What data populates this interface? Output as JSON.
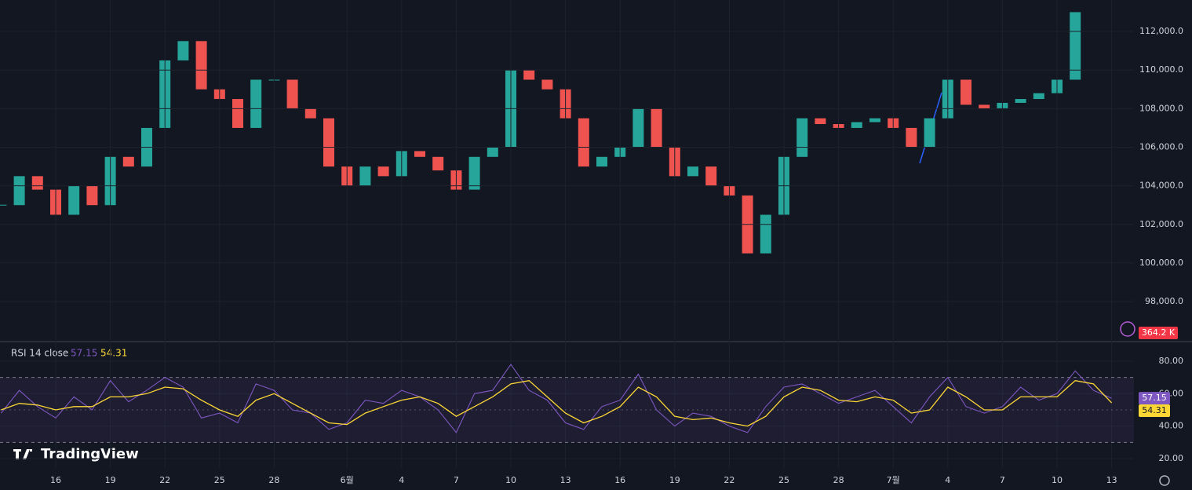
{
  "chart_data": [
    {
      "type": "candlestick",
      "up_color": "#26a69a",
      "down_color": "#ef5350",
      "grid": true,
      "values": [
        103000,
        104500,
        103800,
        102500,
        104000,
        103000,
        105500,
        105000,
        107000,
        110500,
        111500,
        109000,
        108500,
        107000,
        109500,
        109500,
        108000,
        107500,
        105000,
        104000,
        105000,
        104500,
        105800,
        105500,
        104800,
        103800,
        105500,
        106000,
        110000,
        109500,
        109000,
        107500,
        105000,
        105500,
        106000,
        108000,
        106000,
        104500,
        105000,
        104000,
        103500,
        100500,
        102500,
        105500,
        107500,
        107200,
        107000,
        107300,
        107500,
        107000,
        106000,
        107500,
        109500,
        108200,
        108000,
        108300,
        108500,
        108800,
        109500,
        113000,
        null,
        null
      ],
      "ylim": [
        96050,
        113630
      ],
      "yticks": [
        {
          "value": 98000,
          "label": "98,000.0"
        },
        {
          "value": 100000,
          "label": "100,000.0"
        },
        {
          "value": 102000,
          "label": "102,000.0"
        },
        {
          "value": 104000,
          "label": "104,000.0"
        },
        {
          "value": 106000,
          "label": "106,000.0"
        },
        {
          "value": 108000,
          "label": "108,000.0"
        },
        {
          "value": 110000,
          "label": "110,000.0"
        },
        {
          "value": 112000,
          "label": "112,000.0"
        }
      ]
    },
    {
      "type": "line",
      "title": "RSI 14 close",
      "grid": true,
      "categories": [
        null,
        null,
        null,
        "16",
        null,
        null,
        "19",
        null,
        null,
        "22",
        null,
        null,
        "25",
        null,
        null,
        "28",
        null,
        null,
        null,
        "6월",
        null,
        null,
        "4",
        null,
        null,
        "7",
        null,
        null,
        "10",
        null,
        null,
        "13",
        null,
        null,
        "16",
        null,
        null,
        "19",
        null,
        null,
        "22",
        null,
        null,
        "25",
        null,
        null,
        "28",
        null,
        null,
        "7월",
        null,
        null,
        "4",
        null,
        null,
        "7",
        null,
        null,
        "10",
        null,
        null,
        "13"
      ],
      "series": [
        {
          "color": "#7e57c2",
          "values": [
            48,
            62,
            52,
            45,
            58,
            50,
            68,
            55,
            62,
            70,
            64,
            45,
            48,
            42,
            66,
            62,
            50,
            48,
            38,
            42,
            56,
            54,
            62,
            58,
            50,
            36,
            60,
            62,
            78,
            62,
            56,
            42,
            38,
            52,
            56,
            72,
            50,
            40,
            48,
            46,
            40,
            36,
            52,
            64,
            66,
            60,
            54,
            58,
            62,
            52,
            42,
            58,
            70,
            52,
            48,
            52,
            64,
            56,
            60,
            74,
            62,
            57.15
          ]
        },
        {
          "color": "#fdd835",
          "values": [
            50,
            54,
            53,
            50,
            52,
            52,
            58,
            58,
            60,
            64,
            63,
            56,
            50,
            46,
            56,
            60,
            54,
            48,
            42,
            41,
            48,
            52,
            56,
            58,
            54,
            46,
            52,
            58,
            66,
            68,
            58,
            48,
            42,
            46,
            52,
            64,
            58,
            46,
            44,
            45,
            42,
            40,
            46,
            58,
            64,
            62,
            56,
            55,
            58,
            56,
            48,
            50,
            64,
            58,
            50,
            50,
            58,
            58,
            58,
            68,
            66,
            54.31
          ]
        }
      ],
      "bands": [
        30,
        70
      ],
      "midline": 50,
      "ylim": [
        14.2,
        90.6
      ],
      "yticks": [
        {
          "value": 20,
          "label": "20.00"
        },
        {
          "value": 40,
          "label": "40.00"
        },
        {
          "value": 60,
          "label": "60.00"
        },
        {
          "value": 80,
          "label": "80.00"
        }
      ]
    }
  ],
  "watermark": "TradingView",
  "volume_badge": "364.2 K"
}
